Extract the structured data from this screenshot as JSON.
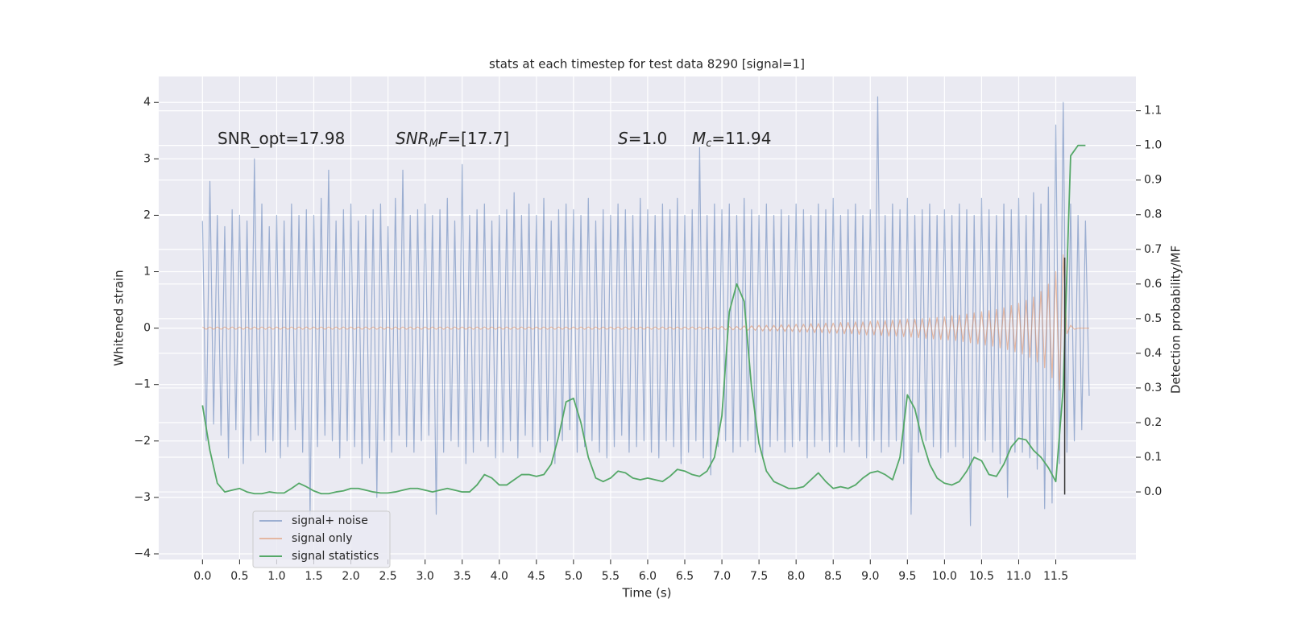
{
  "chart_data": {
    "type": "line",
    "title": "stats at each timestep for test data 8290 [signal=1]",
    "xlabel": "Time (s)",
    "ylabel": "Whitened strain",
    "y2label": "Detection probability/MF",
    "xlim": [
      -0.59,
      12.58
    ],
    "ylim": [
      -4.1,
      4.46
    ],
    "y2lim": [
      -0.195,
      1.199
    ],
    "grid": true,
    "legend": "lower left",
    "background": "#eaeaf2",
    "xticks": [
      {
        "value": 0,
        "label": "0.0"
      },
      0.5,
      {
        "value": 1,
        "label": "1.0"
      },
      1.5,
      {
        "value": 2,
        "label": "2.0"
      },
      2.5,
      {
        "value": 3,
        "label": "3.0"
      },
      3.5,
      {
        "value": 4,
        "label": "4.0"
      },
      4.5,
      {
        "value": 5,
        "label": "5.0"
      },
      5.5,
      {
        "value": 6,
        "label": "6.0"
      },
      6.5,
      {
        "value": 7,
        "label": "7.0"
      },
      7.5,
      {
        "value": 8,
        "label": "8.0"
      },
      8.5,
      {
        "value": 9,
        "label": "9.0"
      },
      9.5,
      {
        "value": 10,
        "label": "10.0"
      },
      10.5,
      {
        "value": 11,
        "label": "11.0"
      },
      11.5
    ],
    "yticks": [
      {
        "value": -4,
        "label": "−4"
      },
      {
        "value": -3,
        "label": "−3"
      },
      {
        "value": -2,
        "label": "−2"
      },
      {
        "value": -1,
        "label": "−1"
      },
      0,
      1,
      2,
      3,
      4
    ],
    "y2ticks": [
      {
        "value": 0,
        "label": "0.0"
      },
      0.1,
      0.2,
      0.3,
      0.4,
      0.5,
      0.6,
      0.7,
      0.8,
      0.9,
      {
        "value": 1,
        "label": "1.0"
      },
      1.1
    ],
    "annotations": [
      [
        {
          "t": "SNR_opt=17.98",
          "style": "normal"
        }
      ],
      [
        {
          "t": "SNR",
          "style": "italic"
        },
        {
          "t": "M",
          "style": "sub"
        },
        {
          "t": "F",
          "style": "italic"
        },
        {
          "t": "=[17.7]",
          "style": "normal"
        }
      ],
      [
        {
          "t": "S",
          "style": "italic"
        },
        {
          "t": "=1.0",
          "style": "normal"
        }
      ],
      [
        {
          "t": "M",
          "style": "italic"
        },
        {
          "t": "c",
          "style": "sub"
        },
        {
          "t": "=11.94",
          "style": "normal"
        }
      ]
    ],
    "vlines": [
      {
        "x": 11.62,
        "ymin": -2.95,
        "ymax": 1.25,
        "color": "#333333"
      }
    ],
    "x": [
      0,
      0.05,
      0.1,
      0.15,
      0.2,
      0.25,
      0.3,
      0.35,
      0.4,
      0.45,
      0.5,
      0.55,
      0.6,
      0.65,
      0.7,
      0.75,
      0.8,
      0.85,
      0.9,
      0.95,
      1,
      1.05,
      1.1,
      1.15,
      1.2,
      1.25,
      1.3,
      1.35,
      1.4,
      1.45,
      1.5,
      1.55,
      1.6,
      1.65,
      1.7,
      1.75,
      1.8,
      1.85,
      1.9,
      1.95,
      2,
      2.05,
      2.1,
      2.15,
      2.2,
      2.25,
      2.3,
      2.35,
      2.4,
      2.45,
      2.5,
      2.55,
      2.6,
      2.65,
      2.7,
      2.75,
      2.8,
      2.85,
      2.9,
      2.95,
      3,
      3.05,
      3.1,
      3.15,
      3.2,
      3.25,
      3.3,
      3.35,
      3.4,
      3.45,
      3.5,
      3.55,
      3.6,
      3.65,
      3.7,
      3.75,
      3.8,
      3.85,
      3.9,
      3.95,
      4,
      4.05,
      4.1,
      4.15,
      4.2,
      4.25,
      4.3,
      4.35,
      4.4,
      4.45,
      4.5,
      4.55,
      4.6,
      4.65,
      4.7,
      4.75,
      4.8,
      4.85,
      4.9,
      4.95,
      5,
      5.05,
      5.1,
      5.15,
      5.2,
      5.25,
      5.3,
      5.35,
      5.4,
      5.45,
      5.5,
      5.55,
      5.6,
      5.65,
      5.7,
      5.75,
      5.8,
      5.85,
      5.9,
      5.95,
      6,
      6.05,
      6.1,
      6.15,
      6.2,
      6.25,
      6.3,
      6.35,
      6.4,
      6.45,
      6.5,
      6.55,
      6.6,
      6.65,
      6.7,
      6.75,
      6.8,
      6.85,
      6.9,
      6.95,
      7,
      7.05,
      7.1,
      7.15,
      7.2,
      7.25,
      7.3,
      7.35,
      7.4,
      7.45,
      7.5,
      7.55,
      7.6,
      7.65,
      7.7,
      7.75,
      7.8,
      7.85,
      7.9,
      7.95,
      8,
      8.05,
      8.1,
      8.15,
      8.2,
      8.25,
      8.3,
      8.35,
      8.4,
      8.45,
      8.5,
      8.55,
      8.6,
      8.65,
      8.7,
      8.75,
      8.8,
      8.85,
      8.9,
      8.95,
      9,
      9.05,
      9.1,
      9.15,
      9.2,
      9.25,
      9.3,
      9.35,
      9.4,
      9.45,
      9.5,
      9.55,
      9.6,
      9.65,
      9.7,
      9.75,
      9.8,
      9.85,
      9.9,
      9.95,
      10,
      10.05,
      10.1,
      10.15,
      10.2,
      10.25,
      10.3,
      10.35,
      10.4,
      10.45,
      10.5,
      10.55,
      10.6,
      10.65,
      10.7,
      10.75,
      10.8,
      10.85,
      10.9,
      10.95,
      11,
      11.05,
      11.1,
      11.15,
      11.2,
      11.25,
      11.3,
      11.35,
      11.4,
      11.45,
      11.5,
      11.55,
      11.6,
      11.65,
      11.7,
      11.75,
      11.8,
      11.85,
      11.9,
      11.95
    ],
    "series": [
      {
        "name": "signal+ noise",
        "color": "#4c72b0",
        "alpha": 0.5,
        "values": [
          1.9,
          -2.0,
          2.6,
          -1.7,
          2.0,
          -1.9,
          1.8,
          -2.3,
          2.1,
          -1.8,
          2.0,
          -2.4,
          1.9,
          -2.0,
          3.0,
          -1.9,
          2.2,
          -2.2,
          1.8,
          -2.0,
          2.0,
          -2.3,
          1.9,
          -2.1,
          2.2,
          -1.8,
          2.0,
          -2.2,
          2.1,
          -3.3,
          2.0,
          -2.1,
          2.3,
          -1.9,
          2.8,
          -2.0,
          1.9,
          -2.3,
          2.1,
          -2.0,
          2.2,
          -2.1,
          1.9,
          -2.4,
          2.0,
          -2.3,
          2.1,
          -3.0,
          2.2,
          -2.0,
          1.8,
          -2.2,
          2.3,
          -1.9,
          2.8,
          -2.1,
          2.0,
          -2.2,
          2.1,
          -2.0,
          2.2,
          -1.9,
          2.0,
          -3.3,
          2.1,
          -2.2,
          2.3,
          -2.0,
          1.9,
          -2.1,
          2.9,
          -2.4,
          2.0,
          -2.2,
          2.1,
          -2.0,
          2.2,
          -2.1,
          1.9,
          -2.3,
          2.0,
          -2.2,
          2.1,
          -2.0,
          2.4,
          -2.3,
          2.0,
          -1.9,
          2.2,
          -2.1,
          2.0,
          -2.2,
          2.3,
          -2.0,
          1.9,
          -2.4,
          2.1,
          -2.0,
          2.2,
          -1.8,
          2.1,
          -2.2,
          2.0,
          -2.1,
          2.3,
          -2.0,
          1.9,
          -2.2,
          2.1,
          -2.3,
          2.0,
          -2.1,
          2.2,
          -1.9,
          2.1,
          -2.2,
          2.0,
          -2.1,
          2.3,
          -2.0,
          2.1,
          -2.2,
          2.0,
          -2.3,
          2.2,
          -2.0,
          2.1,
          -2.1,
          2.3,
          -2.4,
          2.0,
          -2.2,
          2.1,
          -2.0,
          3.2,
          -2.3,
          2.0,
          -2.6,
          2.2,
          -2.1,
          2.1,
          -2.0,
          2.2,
          -2.2,
          2.0,
          -2.1,
          2.3,
          -2.0,
          2.1,
          -2.2,
          2.0,
          -2.3,
          2.2,
          -2.1,
          2.0,
          -2.0,
          2.1,
          -2.2,
          2.0,
          -2.1,
          2.2,
          -2.0,
          2.1,
          -2.3,
          2.0,
          -2.1,
          2.2,
          -2.0,
          2.1,
          -2.2,
          2.3,
          -2.1,
          2.0,
          -2.2,
          2.1,
          -2.0,
          2.2,
          -2.1,
          2.0,
          -2.3,
          2.1,
          -2.0,
          4.1,
          -2.2,
          2.0,
          -2.1,
          2.2,
          -2.0,
          2.1,
          -2.4,
          2.3,
          -3.3,
          2.0,
          -2.2,
          2.1,
          -2.0,
          2.2,
          -2.1,
          2.0,
          -2.3,
          2.1,
          -2.2,
          2.0,
          -2.1,
          2.2,
          -2.3,
          2.1,
          -3.5,
          2.0,
          -2.2,
          2.3,
          -2.0,
          2.1,
          -2.2,
          2.0,
          -2.4,
          2.2,
          -3.0,
          2.1,
          -2.2,
          2.3,
          -2.2,
          2.0,
          -2.3,
          2.4,
          -2.5,
          2.2,
          -3.2,
          2.5,
          -3.1,
          3.6,
          -2.4,
          4.0,
          -2.2,
          2.2,
          -2.0,
          2.0,
          -1.8,
          1.9,
          -1.2
        ]
      },
      {
        "name": "signal only",
        "color": "#dd8452",
        "alpha": 0.5,
        "values": [
          0.02,
          -0.02,
          0.02,
          -0.02,
          0.02,
          -0.02,
          0.02,
          -0.02,
          0.02,
          -0.02,
          0.02,
          -0.02,
          0.02,
          -0.02,
          0.02,
          -0.02,
          0.02,
          -0.02,
          0.02,
          -0.02,
          0.02,
          -0.02,
          0.02,
          -0.02,
          0.02,
          -0.02,
          0.02,
          -0.02,
          0.02,
          -0.02,
          0.02,
          -0.02,
          0.02,
          -0.02,
          0.02,
          -0.02,
          0.02,
          -0.02,
          0.02,
          -0.02,
          0.02,
          -0.02,
          0.02,
          -0.02,
          0.02,
          -0.02,
          0.02,
          -0.02,
          0.02,
          -0.02,
          0.02,
          -0.02,
          0.02,
          -0.02,
          0.02,
          -0.02,
          0.02,
          -0.02,
          0.02,
          -0.02,
          0.02,
          -0.02,
          0.02,
          -0.02,
          0.02,
          -0.02,
          0.02,
          -0.02,
          0.02,
          -0.02,
          0.02,
          -0.02,
          0.02,
          -0.02,
          0.02,
          -0.02,
          0.02,
          -0.02,
          0.02,
          -0.02,
          0.02,
          -0.02,
          0.02,
          -0.02,
          0.02,
          -0.02,
          0.02,
          -0.02,
          0.02,
          -0.02,
          0.02,
          -0.02,
          0.02,
          -0.02,
          0.02,
          -0.02,
          0.02,
          -0.02,
          0.02,
          -0.02,
          0.02,
          -0.02,
          0.02,
          -0.02,
          0.02,
          -0.02,
          0.02,
          -0.02,
          0.02,
          -0.02,
          0.02,
          -0.02,
          0.02,
          -0.02,
          0.02,
          -0.02,
          0.02,
          -0.02,
          0.02,
          -0.02,
          0.02,
          -0.02,
          0.02,
          -0.02,
          0.02,
          -0.02,
          0.02,
          -0.02,
          0.02,
          -0.02,
          0.02,
          -0.02,
          0.02,
          -0.02,
          0.02,
          -0.02,
          0.02,
          -0.02,
          0.02,
          -0.02,
          0.03,
          -0.03,
          0.03,
          -0.03,
          0.03,
          -0.03,
          0.04,
          -0.04,
          0.04,
          -0.04,
          0.05,
          -0.05,
          0.05,
          -0.05,
          0.05,
          -0.05,
          0.06,
          -0.06,
          0.06,
          -0.06,
          0.07,
          -0.07,
          0.07,
          -0.07,
          0.08,
          -0.08,
          0.08,
          -0.08,
          0.09,
          -0.09,
          0.09,
          -0.09,
          0.1,
          -0.1,
          0.1,
          -0.1,
          0.11,
          -0.11,
          0.11,
          -0.12,
          0.12,
          -0.12,
          0.13,
          -0.13,
          0.13,
          -0.14,
          0.14,
          -0.14,
          0.15,
          -0.15,
          0.16,
          -0.16,
          0.16,
          -0.17,
          0.17,
          -0.18,
          0.18,
          -0.19,
          0.19,
          -0.2,
          0.2,
          -0.21,
          0.22,
          -0.22,
          0.23,
          -0.24,
          0.25,
          -0.26,
          0.27,
          -0.28,
          0.29,
          -0.3,
          0.31,
          -0.32,
          0.33,
          -0.35,
          0.36,
          -0.38,
          0.4,
          -0.42,
          0.44,
          -0.46,
          0.49,
          -0.52,
          0.55,
          -0.6,
          0.65,
          -0.7,
          0.78,
          -0.88,
          1.0,
          -1.1,
          1.3,
          -0.1,
          0.05,
          -0.02,
          0,
          0,
          0,
          0
        ]
      },
      {
        "name": "signal statistics",
        "color": "#55a868",
        "axis": "y2",
        "x": [
          0,
          0.1,
          0.2,
          0.3,
          0.4,
          0.5,
          0.6,
          0.7,
          0.8,
          0.9,
          1,
          1.1,
          1.2,
          1.3,
          1.4,
          1.5,
          1.6,
          1.7,
          1.8,
          1.9,
          2,
          2.1,
          2.2,
          2.3,
          2.4,
          2.5,
          2.6,
          2.7,
          2.8,
          2.9,
          3,
          3.1,
          3.2,
          3.3,
          3.4,
          3.5,
          3.6,
          3.7,
          3.8,
          3.9,
          4,
          4.1,
          4.2,
          4.3,
          4.4,
          4.5,
          4.6,
          4.7,
          4.8,
          4.9,
          5,
          5.1,
          5.2,
          5.3,
          5.4,
          5.5,
          5.6,
          5.7,
          5.8,
          5.9,
          6,
          6.1,
          6.2,
          6.3,
          6.4,
          6.5,
          6.6,
          6.7,
          6.8,
          6.9,
          7,
          7.1,
          7.2,
          7.3,
          7.4,
          7.5,
          7.6,
          7.7,
          7.8,
          7.9,
          8,
          8.1,
          8.2,
          8.3,
          8.4,
          8.5,
          8.6,
          8.7,
          8.8,
          8.9,
          9,
          9.1,
          9.2,
          9.3,
          9.4,
          9.5,
          9.6,
          9.7,
          9.8,
          9.9,
          10,
          10.1,
          10.2,
          10.3,
          10.4,
          10.5,
          10.6,
          10.7,
          10.8,
          10.9,
          11,
          11.1,
          11.2,
          11.3,
          11.4,
          11.5,
          11.6,
          11.7,
          11.8,
          11.9
        ],
        "values": [
          0.25,
          0.12,
          0.025,
          0.0,
          0.005,
          0.01,
          0.0,
          -0.005,
          -0.005,
          0.0,
          -0.003,
          -0.003,
          0.01,
          0.025,
          0.015,
          0.003,
          -0.005,
          -0.005,
          0.0,
          0.003,
          0.01,
          0.01,
          0.005,
          0.0,
          -0.003,
          -0.003,
          0.0,
          0.005,
          0.01,
          0.01,
          0.005,
          0.0,
          0.005,
          0.01,
          0.005,
          0.0,
          0.0,
          0.02,
          0.05,
          0.04,
          0.02,
          0.02,
          0.035,
          0.05,
          0.05,
          0.045,
          0.05,
          0.08,
          0.16,
          0.26,
          0.27,
          0.2,
          0.1,
          0.04,
          0.03,
          0.04,
          0.06,
          0.055,
          0.04,
          0.035,
          0.04,
          0.035,
          0.03,
          0.045,
          0.065,
          0.06,
          0.05,
          0.045,
          0.06,
          0.1,
          0.22,
          0.52,
          0.6,
          0.55,
          0.3,
          0.14,
          0.06,
          0.03,
          0.02,
          0.01,
          0.01,
          0.015,
          0.035,
          0.055,
          0.03,
          0.01,
          0.015,
          0.01,
          0.02,
          0.04,
          0.055,
          0.06,
          0.05,
          0.035,
          0.1,
          0.28,
          0.24,
          0.15,
          0.08,
          0.04,
          0.025,
          0.02,
          0.03,
          0.06,
          0.1,
          0.09,
          0.05,
          0.045,
          0.08,
          0.13,
          0.155,
          0.15,
          0.12,
          0.1,
          0.07,
          0.03,
          0.3,
          0.97,
          1.0,
          1.0
        ]
      }
    ]
  }
}
